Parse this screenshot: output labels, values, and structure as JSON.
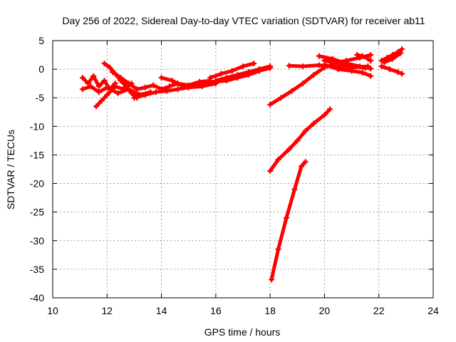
{
  "chart_data": {
    "type": "scatter",
    "title": "Day 256 of 2022, Sidereal Day-to-day VTEC variation (SDTVAR) for receiver ab11",
    "xlabel": "GPS time / hours",
    "ylabel": "SDTVAR / TECUs",
    "xlim": [
      10,
      24
    ],
    "ylim": [
      -40,
      5
    ],
    "xticks": [
      10,
      12,
      14,
      16,
      18,
      20,
      22,
      24
    ],
    "yticks": [
      5,
      0,
      -5,
      -10,
      -15,
      -20,
      -25,
      -30,
      -35,
      -40
    ],
    "grid": true,
    "legend": "none",
    "color": "#ff0000",
    "series": [
      {
        "x": [
          11.1,
          11.3,
          11.5,
          11.7,
          11.9,
          12.1,
          12.3
        ],
        "y": [
          -1.5,
          -2.5,
          -1.2,
          -3.0,
          -2.0,
          -3.5,
          -2.5
        ]
      },
      {
        "x": [
          11.1,
          11.4,
          11.7,
          12.0,
          12.4,
          12.8,
          13.2,
          13.6
        ],
        "y": [
          -3.5,
          -3.0,
          -4.0,
          -3.2,
          -4.2,
          -3.5,
          -4.5,
          -4.0
        ]
      },
      {
        "x": [
          11.6,
          11.8,
          12.0,
          12.3,
          12.6,
          12.9
        ],
        "y": [
          -6.5,
          -5.5,
          -4.5,
          -3.0,
          -3.5,
          -2.5
        ]
      },
      {
        "x": [
          11.9,
          12.1,
          12.3,
          12.5,
          12.7,
          12.9,
          13.1
        ],
        "y": [
          1.0,
          0.3,
          -0.8,
          -2.0,
          -3.0,
          -4.2,
          -5.0
        ]
      },
      {
        "x": [
          12.2,
          12.5,
          12.8,
          13.1,
          13.4,
          13.7,
          14.0,
          14.3,
          14.6,
          15.0,
          15.4,
          15.8
        ],
        "y": [
          -0.5,
          -1.5,
          -2.5,
          -3.5,
          -3.2,
          -2.8,
          -3.5,
          -3.0,
          -2.5,
          -2.8,
          -2.2,
          -2.0
        ]
      },
      {
        "x": [
          13.0,
          13.4,
          13.8,
          14.2,
          14.6,
          15.0,
          15.5,
          16.0
        ],
        "y": [
          -5.0,
          -4.5,
          -4.0,
          -3.8,
          -3.5,
          -3.2,
          -3.0,
          -2.5
        ]
      },
      {
        "x": [
          14.0,
          14.4,
          14.8,
          15.2,
          15.6,
          16.0,
          16.4,
          16.8,
          17.2,
          17.6,
          18.0
        ],
        "y": [
          -1.5,
          -2.0,
          -3.0,
          -2.8,
          -2.5,
          -2.2,
          -2.0,
          -1.5,
          -1.0,
          -0.3,
          0.2
        ]
      },
      {
        "x": [
          16.0,
          16.4,
          16.8,
          17.2,
          17.6,
          18.0
        ],
        "y": [
          -2.0,
          -1.5,
          -1.0,
          -0.5,
          0.0,
          0.5
        ]
      },
      {
        "x": [
          15.8,
          16.2,
          16.6,
          17.0,
          17.4
        ],
        "y": [
          -1.5,
          -0.8,
          -0.3,
          0.5,
          1.0
        ]
      },
      {
        "x": [
          18.0,
          18.4,
          18.8,
          19.2,
          19.6,
          20.0,
          20.4
        ],
        "y": [
          -6.2,
          -5.0,
          -3.8,
          -2.5,
          -1.0,
          0.3,
          1.0
        ]
      },
      {
        "x": [
          18.7,
          19.2,
          19.8,
          20.4,
          21.0,
          21.6
        ],
        "y": [
          0.6,
          0.5,
          0.7,
          0.4,
          0.3,
          0.5
        ]
      },
      {
        "x": [
          19.8,
          20.3,
          20.8,
          21.3,
          21.7
        ],
        "y": [
          2.3,
          1.8,
          1.0,
          0.5,
          0.1
        ]
      },
      {
        "x": [
          20.0,
          20.5,
          21.0,
          21.4,
          21.7
        ],
        "y": [
          0.8,
          0.0,
          -0.3,
          -0.6,
          -1.2
        ]
      },
      {
        "x": [
          20.3,
          20.8,
          21.3,
          21.7
        ],
        "y": [
          1.0,
          1.5,
          2.0,
          2.5
        ]
      },
      {
        "x": [
          21.2,
          21.4,
          21.6,
          21.7
        ],
        "y": [
          2.5,
          2.3,
          1.8,
          1.5
        ]
      },
      {
        "x": [
          20.0,
          20.5,
          21.0,
          21.5
        ],
        "y": [
          1.5,
          1.0,
          0.6,
          0.2
        ]
      },
      {
        "x": [
          22.1,
          22.3,
          22.5,
          22.7,
          22.85
        ],
        "y": [
          1.5,
          2.0,
          2.5,
          3.0,
          3.5
        ]
      },
      {
        "x": [
          22.1,
          22.4,
          22.7,
          22.85
        ],
        "y": [
          0.5,
          0.0,
          -0.5,
          -0.8
        ]
      },
      {
        "x": [
          22.2,
          22.5,
          22.8
        ],
        "y": [
          1.2,
          1.8,
          2.8
        ]
      },
      {
        "x": [
          18.0,
          18.3,
          18.7,
          19.0,
          19.3,
          19.6,
          20.0,
          20.2
        ],
        "y": [
          -17.8,
          -15.8,
          -14.0,
          -12.5,
          -10.8,
          -9.5,
          -8.0,
          -7.0
        ]
      },
      {
        "x": [
          18.05,
          18.3,
          18.6,
          18.9,
          19.15,
          19.3
        ],
        "y": [
          -36.8,
          -31.5,
          -26.0,
          -21.0,
          -17.0,
          -16.2
        ]
      }
    ]
  }
}
